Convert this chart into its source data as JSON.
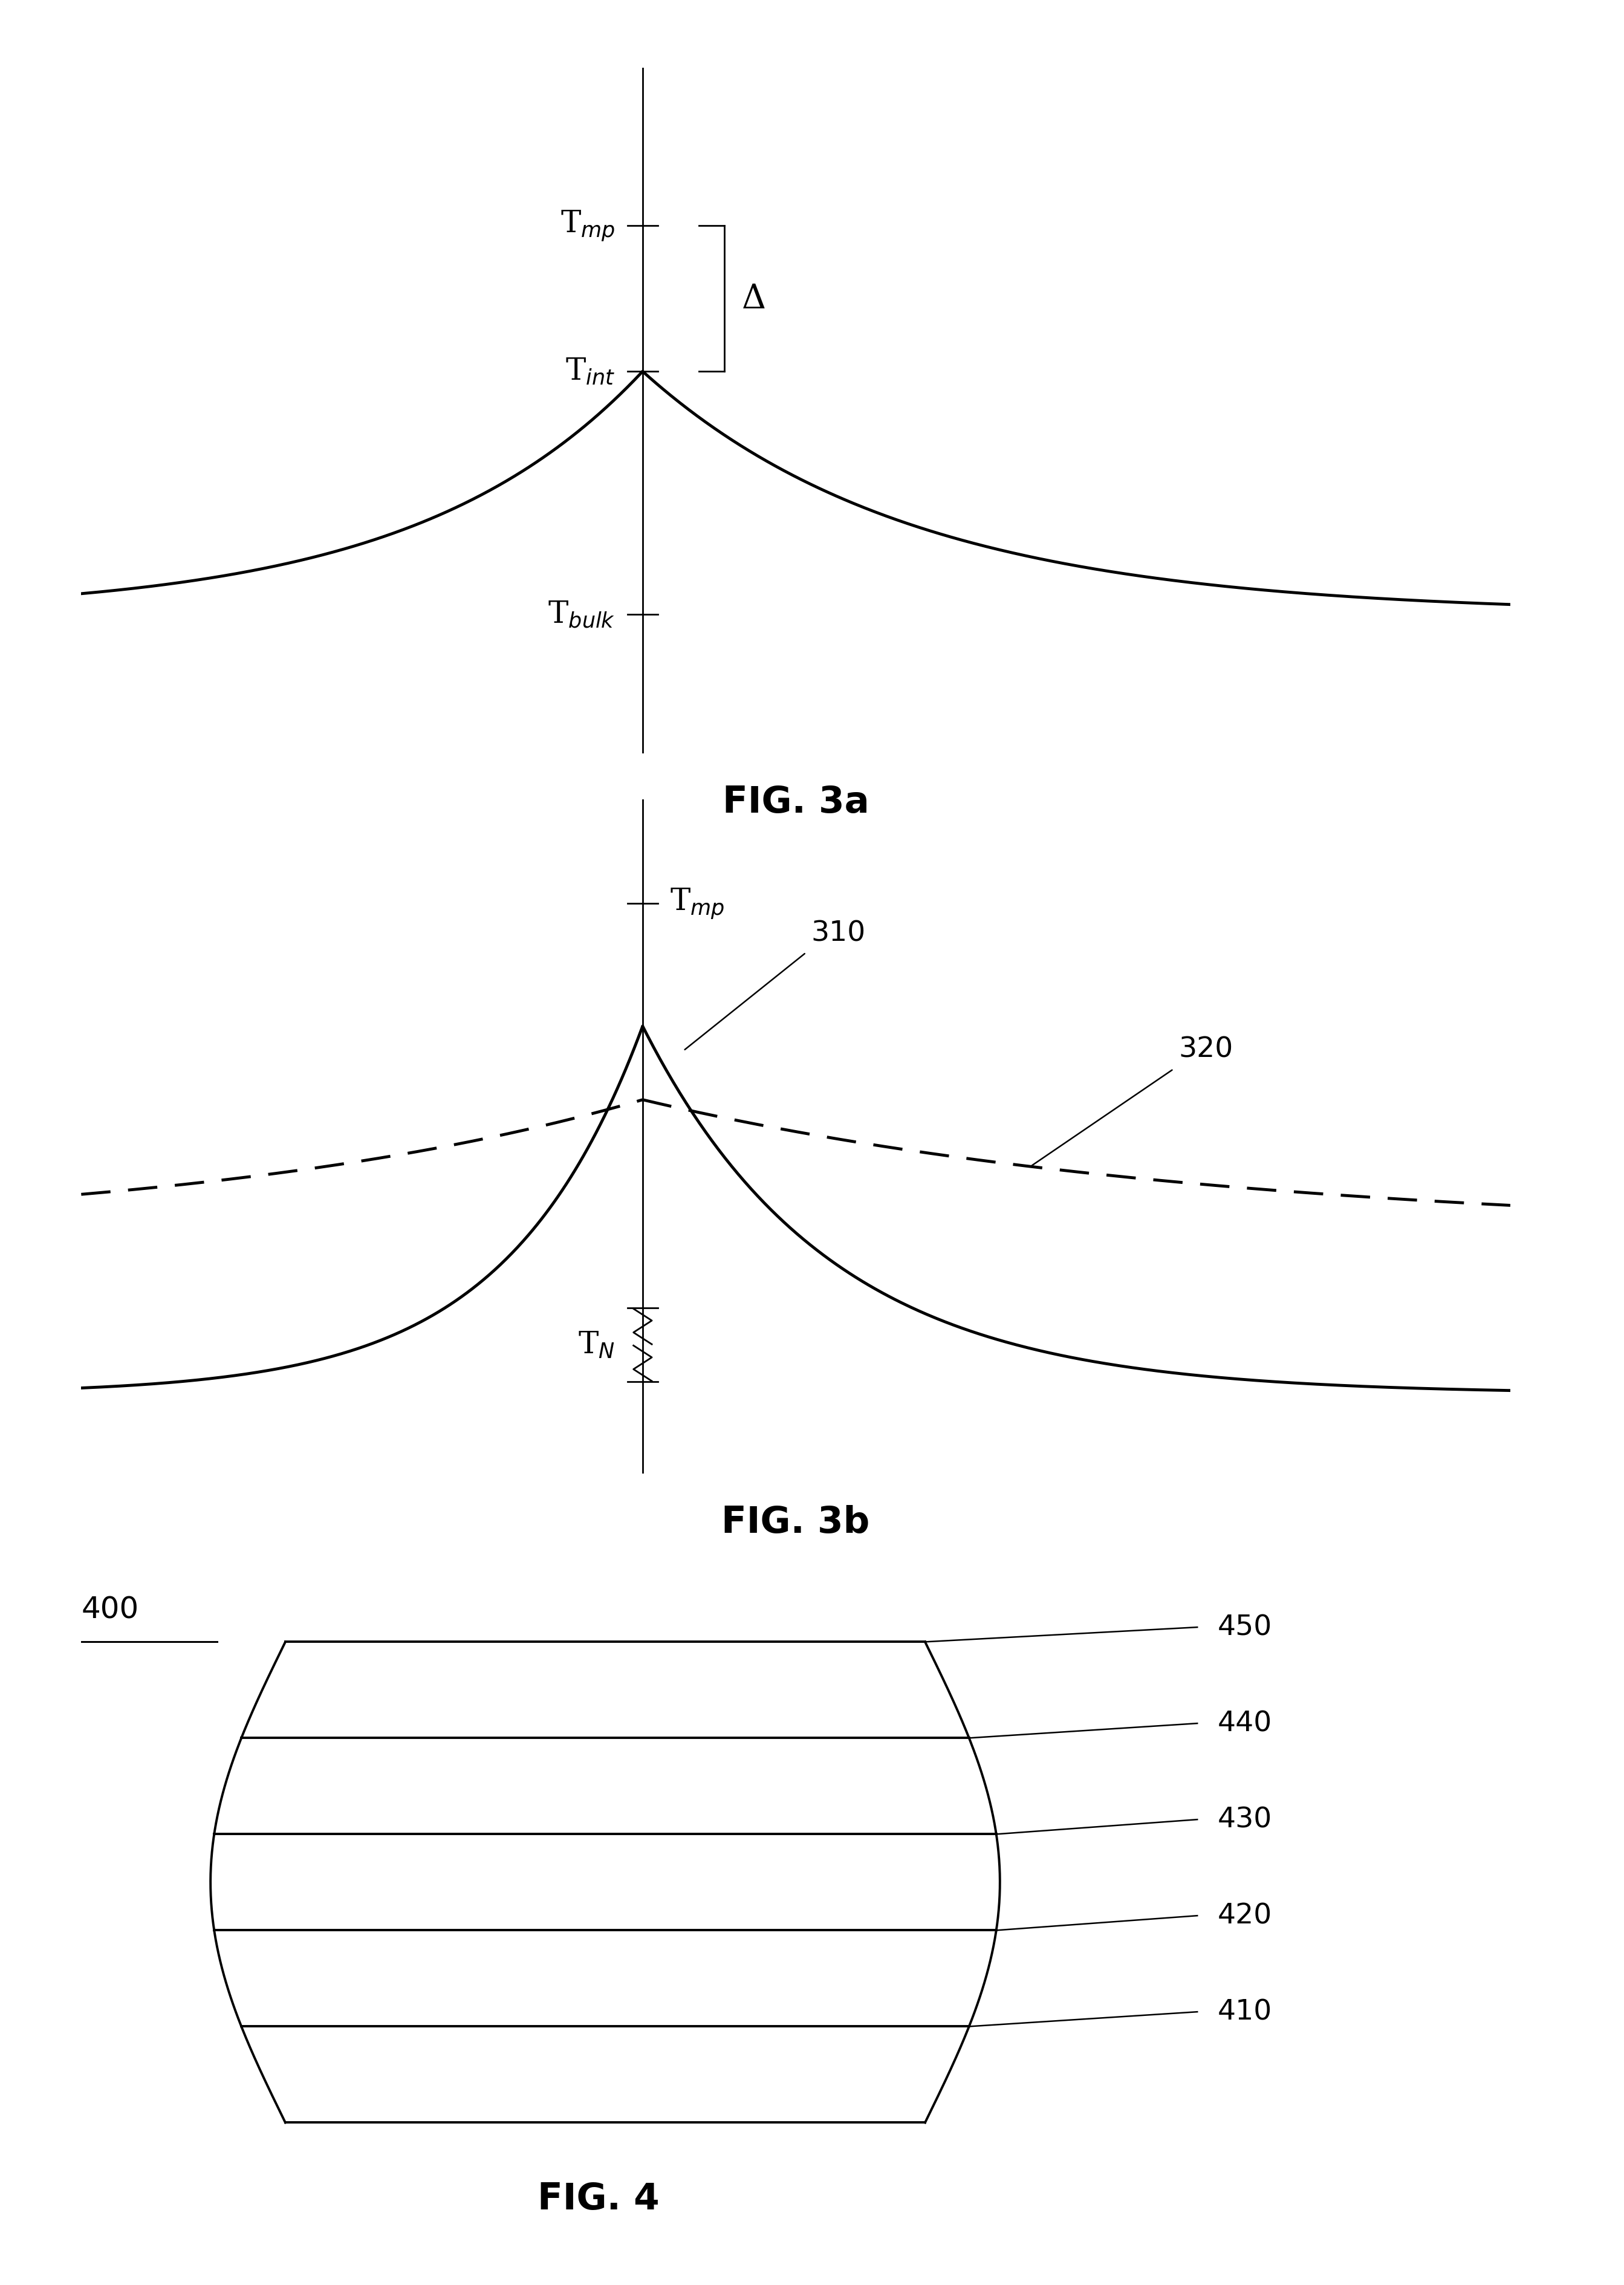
{
  "bg_color": "#ffffff",
  "line_color": "#000000",
  "fig3a": {
    "title": "FIG. 3a",
    "label_Tmp": "T$_{mp}$",
    "label_Tint": "T$_{int}$",
    "label_Tbulk": "T$_{bulk}$",
    "label_delta": "Δ"
  },
  "fig3b": {
    "title": "FIG. 3b",
    "label_Tmp": "T$_{mp}$",
    "label_TN": "T$_{N}$",
    "label_310": "310",
    "label_320": "320"
  },
  "fig4": {
    "title": "FIG. 4",
    "label_400": "400",
    "label_410": "410",
    "label_420": "420",
    "label_430": "430",
    "label_440": "440",
    "label_450": "450",
    "n_layers": 5
  }
}
